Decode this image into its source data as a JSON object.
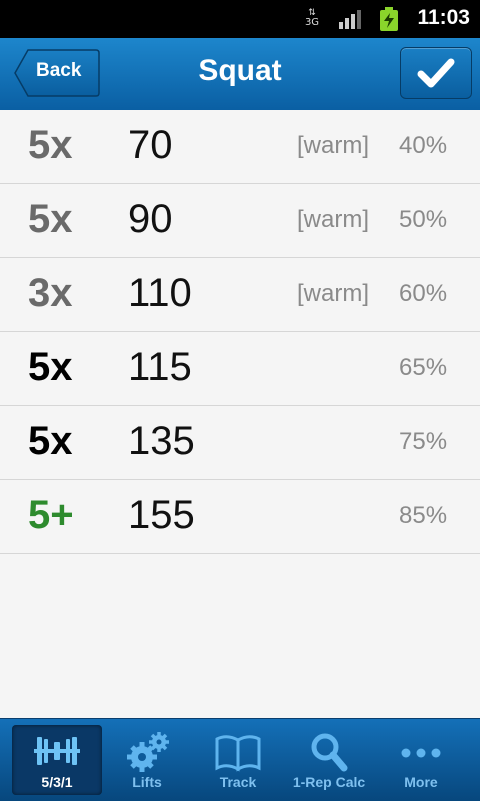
{
  "status_bar": {
    "network": "3G",
    "time": "11:03"
  },
  "header": {
    "title": "Squat",
    "back_label": "Back"
  },
  "sets": [
    {
      "reps": "5x",
      "weight": "70",
      "tag": "[warm]",
      "percent": "40%",
      "reps_color": "#6a6a6a"
    },
    {
      "reps": "5x",
      "weight": "90",
      "tag": "[warm]",
      "percent": "50%",
      "reps_color": "#6a6a6a"
    },
    {
      "reps": "3x",
      "weight": "110",
      "tag": "[warm]",
      "percent": "60%",
      "reps_color": "#6a6a6a"
    },
    {
      "reps": "5x",
      "weight": "115",
      "tag": "",
      "percent": "65%",
      "reps_color": "#000000"
    },
    {
      "reps": "5x",
      "weight": "135",
      "tag": "",
      "percent": "75%",
      "reps_color": "#000000"
    },
    {
      "reps": "5+",
      "weight": "155",
      "tag": "",
      "percent": "85%",
      "reps_color": "#2e8b2e"
    }
  ],
  "tabs": [
    {
      "label": "5/3/1",
      "icon": "barbell-icon",
      "active": true
    },
    {
      "label": "Lifts",
      "icon": "gears-icon",
      "active": false
    },
    {
      "label": "Track",
      "icon": "book-icon",
      "active": false
    },
    {
      "label": "1-Rep Calc",
      "icon": "magnifier-icon",
      "active": false
    },
    {
      "label": "More",
      "icon": "dots-icon",
      "active": false
    }
  ],
  "colors": {
    "accent": "#1d86cc",
    "tab_icon": "#5fb4ee",
    "active_reps_green": "#2e8b2e"
  }
}
